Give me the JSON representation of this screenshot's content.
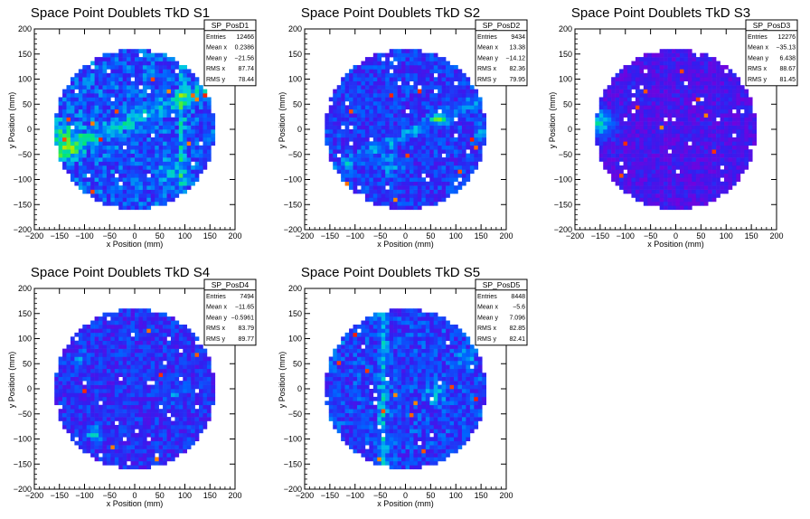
{
  "chart_data": [
    {
      "type": "heatmap",
      "title": "Space Point Doublets TkD S1",
      "xlabel": "x Position (mm)",
      "ylabel": "y Position (mm)",
      "xlim": [
        -200,
        200
      ],
      "ylim": [
        -200,
        200
      ],
      "xticks": [
        -200,
        -150,
        -100,
        -50,
        0,
        50,
        100,
        150,
        200
      ],
      "yticks": [
        -200,
        -150,
        -100,
        -50,
        0,
        50,
        100,
        150,
        200
      ],
      "stats": {
        "name": "SP_PosD1",
        "rows": [
          {
            "label": "Entries",
            "value": "12466"
          },
          {
            "label": "Mean x",
            "value": "0.2386"
          },
          {
            "label": "Mean y",
            "value": "−21.56"
          },
          {
            "label": "RMS x",
            "value": "87.74"
          },
          {
            "label": "RMS y",
            "value": "78.44"
          }
        ]
      }
    },
    {
      "type": "heatmap",
      "title": "Space Point Doublets TkD S2",
      "xlabel": "x Position (mm)",
      "ylabel": "y Position (mm)",
      "xlim": [
        -200,
        200
      ],
      "ylim": [
        -200,
        200
      ],
      "xticks": [
        -200,
        -150,
        -100,
        -50,
        0,
        50,
        100,
        150,
        200
      ],
      "yticks": [
        -200,
        -150,
        -100,
        -50,
        0,
        50,
        100,
        150,
        200
      ],
      "stats": {
        "name": "SP_PosD2",
        "rows": [
          {
            "label": "Entries",
            "value": "9434"
          },
          {
            "label": "Mean x",
            "value": "13.38"
          },
          {
            "label": "Mean y",
            "value": "−14.12"
          },
          {
            "label": "RMS x",
            "value": "82.36"
          },
          {
            "label": "RMS y",
            "value": "79.95"
          }
        ]
      }
    },
    {
      "type": "heatmap",
      "title": "Space Point Doublets TkD S3",
      "xlabel": "x Position (mm)",
      "ylabel": "y Position (mm)",
      "xlim": [
        -200,
        200
      ],
      "ylim": [
        -200,
        200
      ],
      "xticks": [
        -200,
        -150,
        -100,
        -50,
        0,
        50,
        100,
        150,
        200
      ],
      "yticks": [
        -200,
        -150,
        -100,
        -50,
        0,
        50,
        100,
        150,
        200
      ],
      "stats": {
        "name": "SP_PosD3",
        "rows": [
          {
            "label": "Entries",
            "value": "12276"
          },
          {
            "label": "Mean x",
            "value": "−35.13"
          },
          {
            "label": "Mean y",
            "value": "6.438"
          },
          {
            "label": "RMS x",
            "value": "88.67"
          },
          {
            "label": "RMS y",
            "value": "81.45"
          }
        ]
      }
    },
    {
      "type": "heatmap",
      "title": "Space Point Doublets TkD S4",
      "xlabel": "x Position (mm)",
      "ylabel": "y Position (mm)",
      "xlim": [
        -200,
        200
      ],
      "ylim": [
        -200,
        200
      ],
      "xticks": [
        -200,
        -150,
        -100,
        -50,
        0,
        50,
        100,
        150,
        200
      ],
      "yticks": [
        -200,
        -150,
        -100,
        -50,
        0,
        50,
        100,
        150,
        200
      ],
      "stats": {
        "name": "SP_PosD4",
        "rows": [
          {
            "label": "Entries",
            "value": "7494"
          },
          {
            "label": "Mean x",
            "value": "−11.65"
          },
          {
            "label": "Mean y",
            "value": "−0.5961"
          },
          {
            "label": "RMS x",
            "value": "83.79"
          },
          {
            "label": "RMS y",
            "value": "89.77"
          }
        ]
      }
    },
    {
      "type": "heatmap",
      "title": "Space Point Doublets TkD S5",
      "xlabel": "x Position (mm)",
      "ylabel": "y Position (mm)",
      "xlim": [
        -200,
        200
      ],
      "ylim": [
        -200,
        200
      ],
      "xticks": [
        -200,
        -150,
        -100,
        -50,
        0,
        50,
        100,
        150,
        200
      ],
      "yticks": [
        -200,
        -150,
        -100,
        -50,
        0,
        50,
        100,
        150,
        200
      ],
      "stats": {
        "name": "SP_PosD5",
        "rows": [
          {
            "label": "Entries",
            "value": "8448"
          },
          {
            "label": "Mean x",
            "value": "−5.6"
          },
          {
            "label": "Mean y",
            "value": "7.096"
          },
          {
            "label": "RMS x",
            "value": "82.85"
          },
          {
            "label": "RMS y",
            "value": "82.41"
          }
        ]
      }
    }
  ]
}
